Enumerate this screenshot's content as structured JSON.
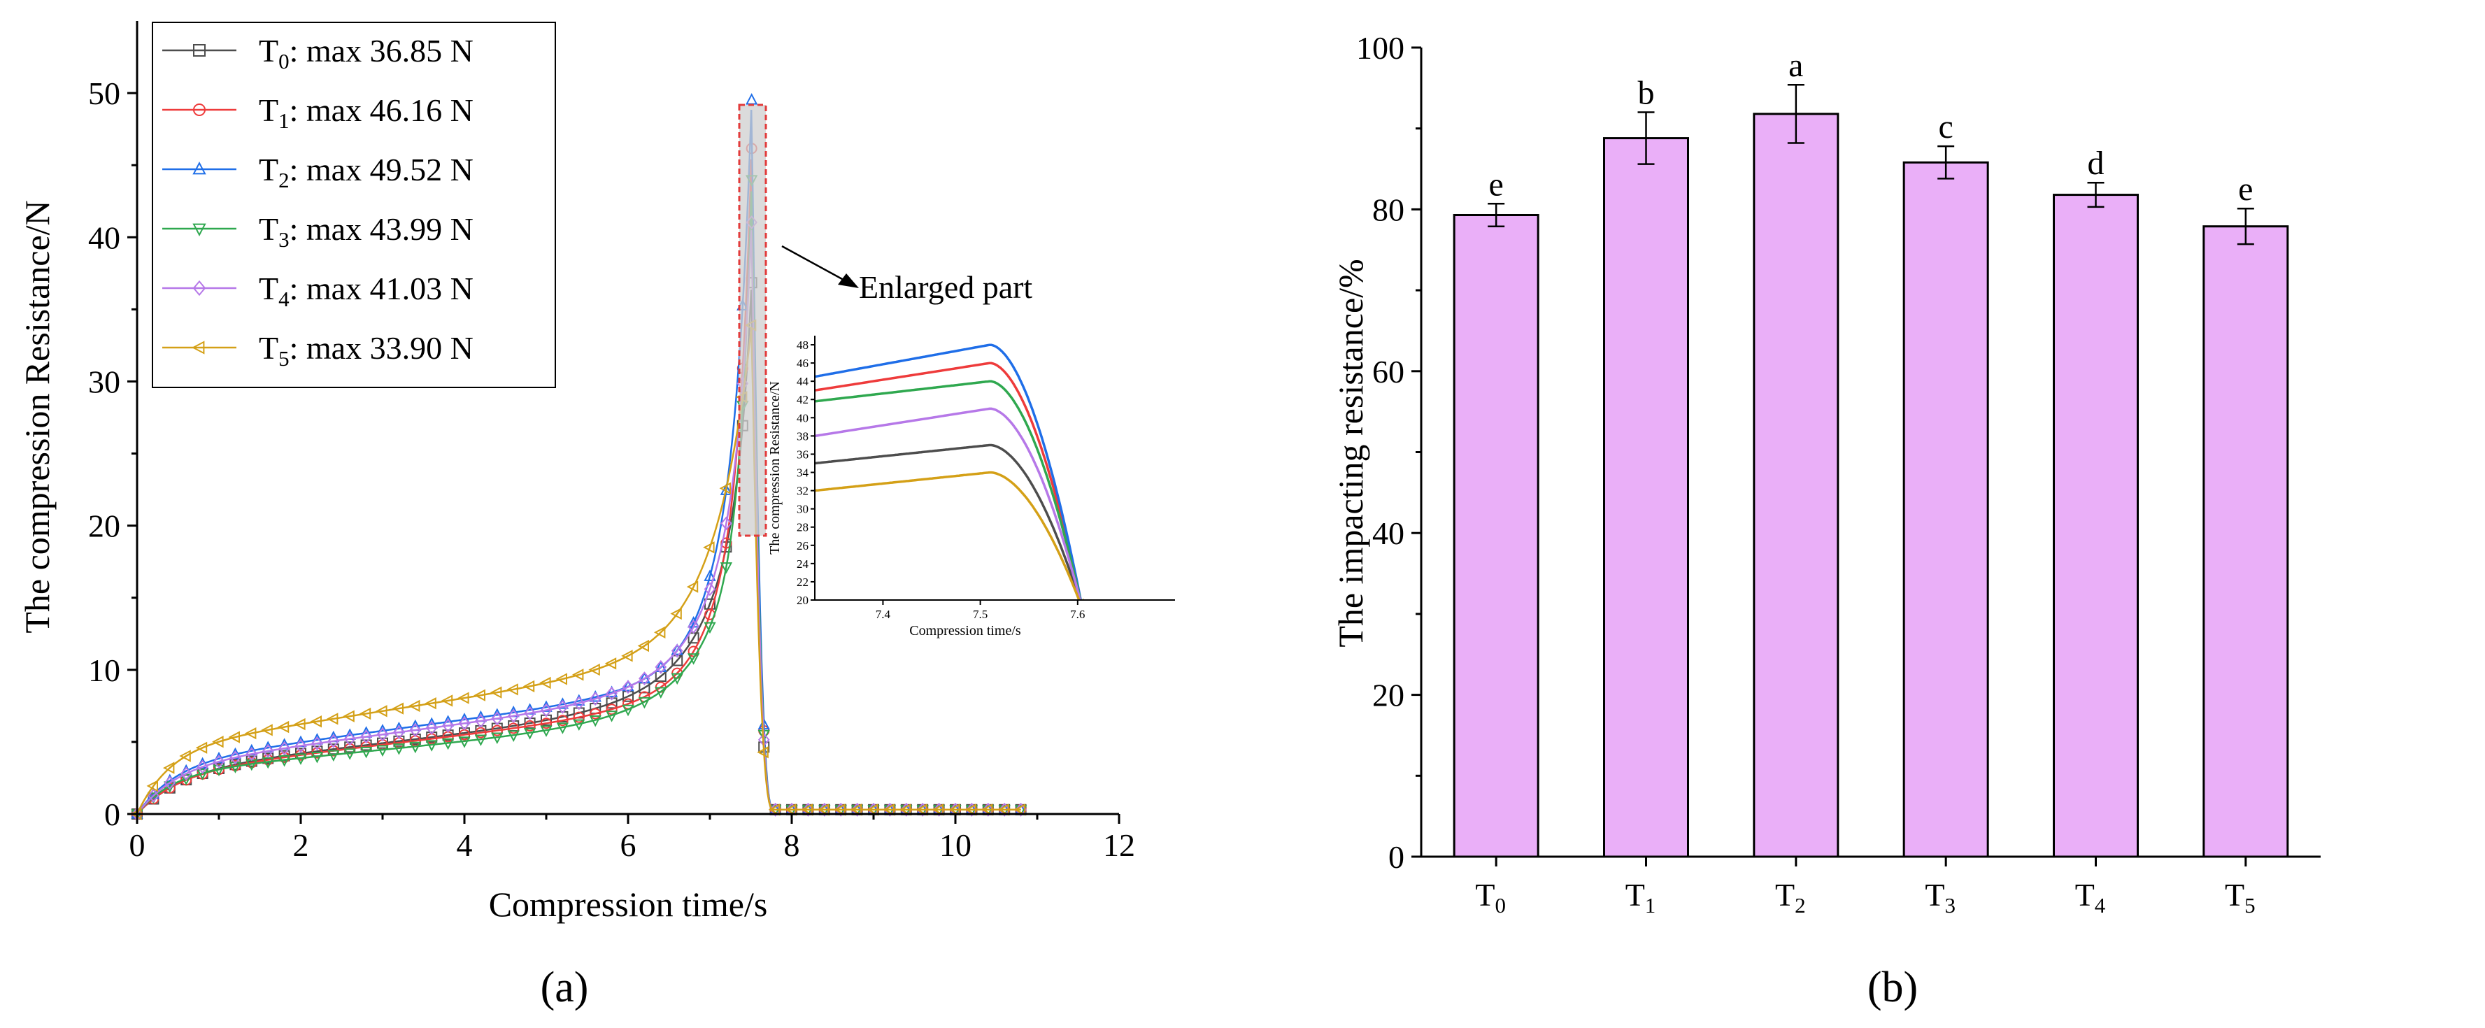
{
  "chart_data": [
    {
      "type": "line",
      "panel_label": "(a)",
      "xlabel": "Compression time/s",
      "ylabel": "The compression Resistance/N",
      "xlim": [
        0,
        12
      ],
      "ylim": [
        0,
        55
      ],
      "xticks": [
        "0",
        "2",
        "4",
        "6",
        "8",
        "10",
        "12"
      ],
      "yticks": [
        "0",
        "10",
        "20",
        "30",
        "40",
        "50"
      ],
      "annotation": "Enlarged part",
      "series": [
        {
          "name": "T",
          "sub": "0",
          "legend_suffix": ":  max 36.85 N",
          "max": 36.85,
          "color": "#4d4d4d",
          "marker": "square",
          "p": [
            3.0,
            0.64,
            5.2,
            7.0,
            13.1,
            17.8,
            0.55
          ]
        },
        {
          "name": "T",
          "sub": "1",
          "legend_suffix": ":  max 46.16 N",
          "max": 46.16,
          "color": "#ee3b3b",
          "marker": "circle",
          "p": [
            2.8,
            0.67,
            5.5,
            9.0,
            16.0,
            23.0,
            0.5
          ]
        },
        {
          "name": "T",
          "sub": "2",
          "legend_suffix": ":  max 49.52 N",
          "max": 49.52,
          "color": "#1f6ee8",
          "marker": "triangle-up",
          "p": [
            3.5,
            0.76,
            6.1,
            10.0,
            22.5,
            23.0,
            0.47
          ]
        },
        {
          "name": "T",
          "sub": "3",
          "legend_suffix": ":  max 43.99 N",
          "max": 43.99,
          "color": "#2fa84f",
          "marker": "triangle-down",
          "p": [
            2.8,
            0.55,
            4.4,
            7.0,
            11.0,
            17.0,
            0.42
          ]
        },
        {
          "name": "T",
          "sub": "4",
          "legend_suffix": ":  max 41.03 N",
          "max": 41.03,
          "color": "#b678e8",
          "marker": "diamond",
          "p": [
            3.3,
            0.74,
            6.2,
            8.5,
            15.0,
            20.5,
            0.48
          ]
        },
        {
          "name": "T",
          "sub": "5",
          "legend_suffix": ":  max 33.90 N",
          "max": 33.9,
          "color": "#d4a017",
          "marker": "triangle-left",
          "p": [
            4.5,
            0.88,
            7.4,
            9.0,
            14.8,
            19.0,
            0.4
          ]
        }
      ],
      "inset": {
        "xlabel": "Compression time/s",
        "ylabel": "The compression Resistance/N",
        "xlim": [
          7.33,
          7.7
        ],
        "ylim": [
          20,
          49
        ],
        "xticks": [
          "7.4",
          "7.5",
          "7.6"
        ],
        "yticks": [
          "20",
          "22",
          "24",
          "26",
          "28",
          "30",
          "32",
          "34",
          "36",
          "38",
          "40",
          "42",
          "44",
          "46",
          "48"
        ],
        "start_values": [
          35.0,
          43.0,
          44.5,
          41.8,
          38.0,
          32.0
        ],
        "peak_values": [
          37.0,
          46.0,
          48.0,
          44.0,
          41.0,
          34.0
        ]
      }
    },
    {
      "type": "bar",
      "panel_label": "(b)",
      "xlabel": "",
      "ylabel": "The impacting resistance/%",
      "ylim": [
        0,
        100
      ],
      "yticks": [
        "0",
        "20",
        "40",
        "60",
        "80",
        "100"
      ],
      "categories": [
        {
          "base": "T",
          "sub": "0"
        },
        {
          "base": "T",
          "sub": "1"
        },
        {
          "base": "T",
          "sub": "2"
        },
        {
          "base": "T",
          "sub": "3"
        },
        {
          "base": "T",
          "sub": "4"
        },
        {
          "base": "T",
          "sub": "5"
        }
      ],
      "values": [
        79.3,
        88.8,
        91.8,
        85.8,
        81.8,
        77.9
      ],
      "errors": [
        1.4,
        3.2,
        3.6,
        2.0,
        1.5,
        2.2
      ],
      "significance": [
        "e",
        "b",
        "a",
        "c",
        "d",
        "e"
      ],
      "bar_color": "#EAAFF8"
    }
  ]
}
